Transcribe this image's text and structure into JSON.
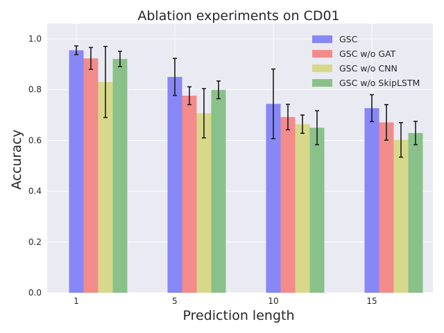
{
  "chart_data": {
    "type": "bar",
    "title": "Ablation experiments on CD01",
    "xlabel": "Prediction length",
    "ylabel": "Accuracy",
    "categories": [
      "1",
      "5",
      "10",
      "15"
    ],
    "ylim": [
      0,
      1.06
    ],
    "yticks": [
      "0.0",
      "0.2",
      "0.4",
      "0.6",
      "0.8",
      "1.0"
    ],
    "grid": true,
    "legend_position": "top-right",
    "error_bars": true,
    "series": [
      {
        "name": "GSC",
        "color": "#8787f6",
        "values": [
          0.955,
          0.85,
          0.744,
          0.727
        ],
        "errors": [
          0.017,
          0.073,
          0.137,
          0.053
        ]
      },
      {
        "name": "GSC w/o GAT",
        "color": "#f38b8b",
        "values": [
          0.923,
          0.776,
          0.692,
          0.671
        ],
        "errors": [
          0.043,
          0.035,
          0.05,
          0.07
        ]
      },
      {
        "name": "GSC w/o CNN",
        "color": "#d8d88b",
        "values": [
          0.83,
          0.707,
          0.664,
          0.602
        ],
        "errors": [
          0.14,
          0.097,
          0.036,
          0.068
        ]
      },
      {
        "name": "GSC w/o SkipLSTM",
        "color": "#8ac18a",
        "values": [
          0.921,
          0.799,
          0.65,
          0.629
        ],
        "errors": [
          0.03,
          0.035,
          0.067,
          0.046
        ]
      }
    ]
  }
}
